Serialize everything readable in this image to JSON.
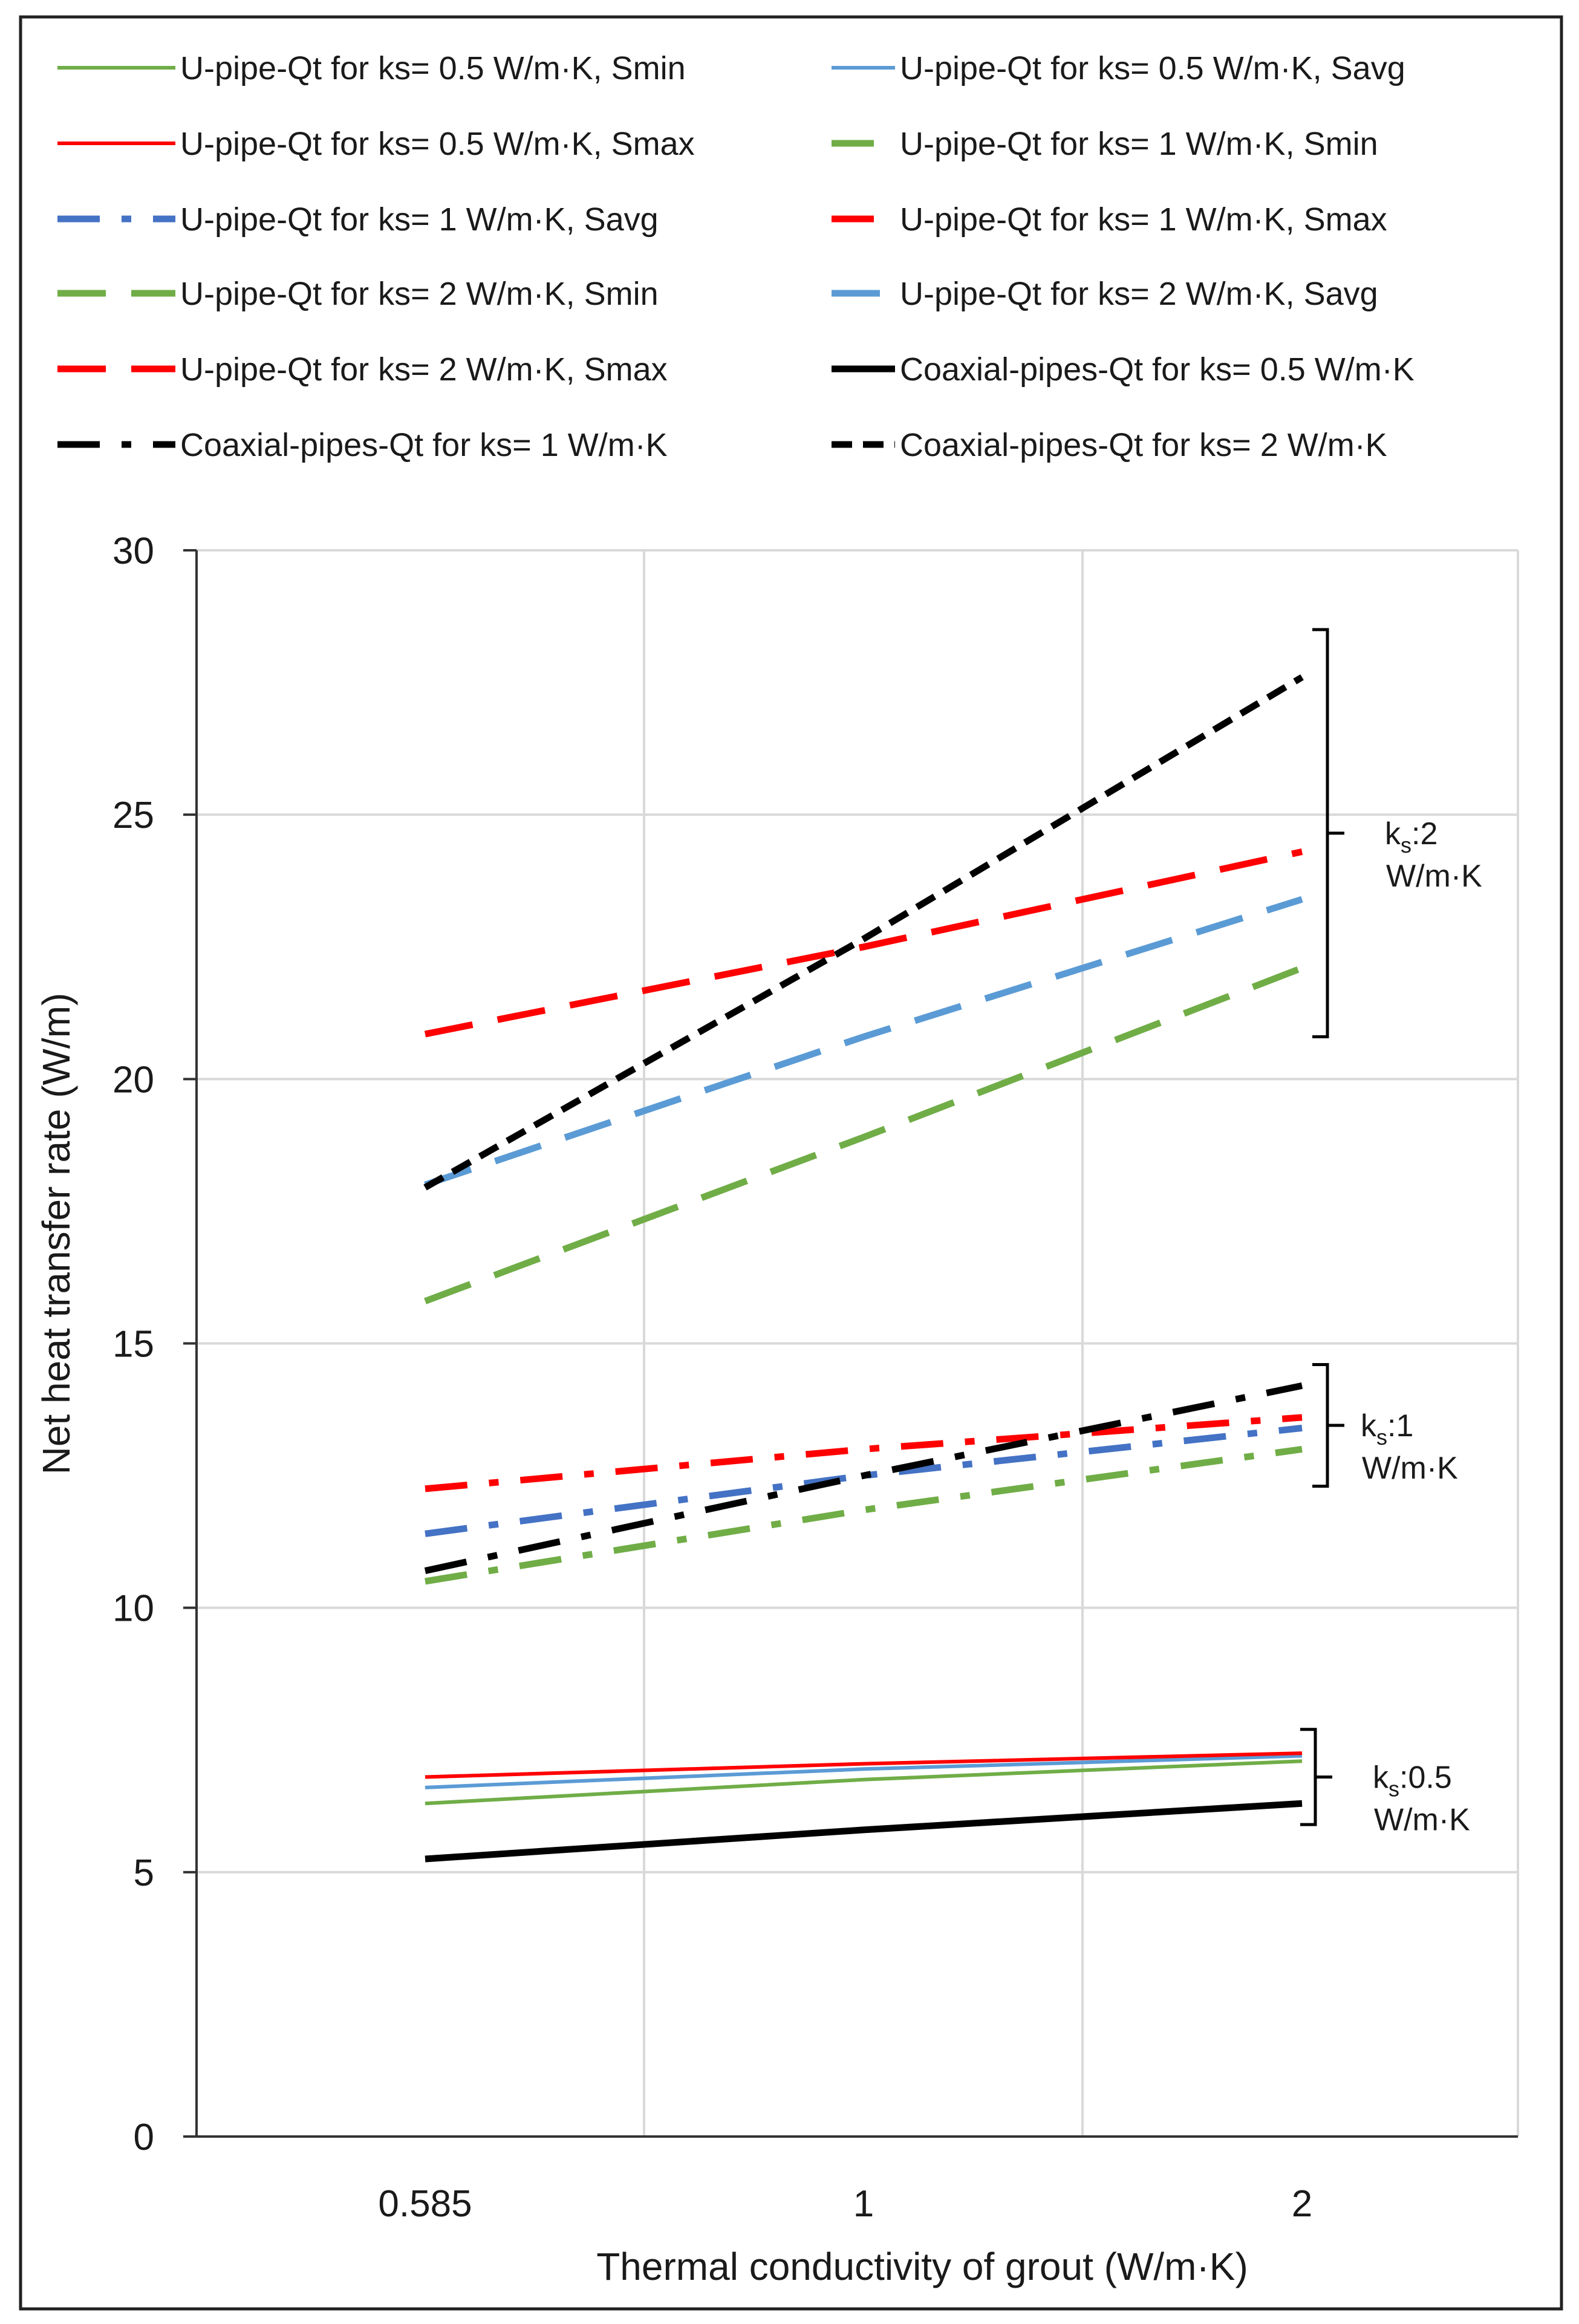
{
  "chart_data": {
    "type": "line",
    "categories": [
      "0.585",
      "1",
      "2"
    ],
    "xlabel": "Thermal conductivity of grout (W/m·K)",
    "ylabel": "Net heat transfer rate (W/m)",
    "ylim": [
      0,
      30
    ],
    "yticks": [
      "0",
      "5",
      "10",
      "15",
      "20",
      "25",
      "30"
    ],
    "grid": true,
    "legend_position": "top",
    "series": [
      {
        "name": "U-pipe-Qt  for ks= 0.5 W/m·K, Smin",
        "values": [
          6.3,
          6.75,
          7.1
        ],
        "color": "#70ad47",
        "dash": "solid",
        "width": "thin"
      },
      {
        "name": "U-pipe-Qt  for ks= 0.5 W/m·K, Savg",
        "values": [
          6.6,
          6.95,
          7.2
        ],
        "color": "#5b9bd5",
        "dash": "solid",
        "width": "thin"
      },
      {
        "name": "U-pipe-Qt  for ks= 0.5 W/m·K, Smax",
        "values": [
          6.8,
          7.05,
          7.25
        ],
        "color": "#ff0000",
        "dash": "solid",
        "width": "thin"
      },
      {
        "name": "U-pipe-Qt  for ks= 1 W/m·K, Smin",
        "values": [
          10.5,
          11.85,
          13.0
        ],
        "color": "#70ad47",
        "dash": "dashdot",
        "width": "thick"
      },
      {
        "name": "U-pipe-Qt  for ks= 1 W/m·K, Savg",
        "values": [
          11.4,
          12.5,
          13.4
        ],
        "color": "#4472c4",
        "dash": "dashdot",
        "width": "thick"
      },
      {
        "name": "U-pipe-Qt  for ks= 1 W/m·K, Smax",
        "values": [
          12.25,
          13.0,
          13.6
        ],
        "color": "#ff0000",
        "dash": "dashdot",
        "width": "thick"
      },
      {
        "name": "U-pipe-Qt  for ks= 2 W/m·K, Smin",
        "values": [
          15.8,
          18.9,
          22.1
        ],
        "color": "#70ad47",
        "dash": "dash",
        "width": "thick"
      },
      {
        "name": "U-pipe-Qt  for ks= 2 W/m·K, Savg",
        "values": [
          18.0,
          20.8,
          23.4
        ],
        "color": "#5b9bd5",
        "dash": "dash",
        "width": "thick"
      },
      {
        "name": "U-pipe-Qt  for ks= 2 W/m·K, Smax",
        "values": [
          20.85,
          22.5,
          24.3
        ],
        "color": "#ff0000",
        "dash": "dash",
        "width": "thick"
      },
      {
        "name": "Coaxial-pipes-Qt  for ks= 0.5 W/m·K",
        "values": [
          5.25,
          5.8,
          6.3
        ],
        "color": "#000000",
        "dash": "solid",
        "width": "thick"
      },
      {
        "name": "Coaxial-pipes-Qt  for ks= 1 W/m·K",
        "values": [
          10.7,
          12.5,
          14.2
        ],
        "color": "#000000",
        "dash": "dashdot",
        "width": "thick"
      },
      {
        "name": "Coaxial-pipes-Qt  for ks= 2 W/m·K",
        "values": [
          17.95,
          22.65,
          27.6
        ],
        "color": "#000000",
        "dash": "shortdash",
        "width": "thick"
      }
    ],
    "annotations": [
      {
        "id": "ks2",
        "sub_prefix": "k",
        "sub": "s",
        "value": ":2",
        "unit": "W/m·K",
        "range": [
          20.8,
          28.5
        ]
      },
      {
        "id": "ks1",
        "sub_prefix": "k",
        "sub": "s",
        "value": ":1",
        "unit": "W/m·K",
        "range": [
          12.3,
          14.6
        ]
      },
      {
        "id": "ks05",
        "sub_prefix": "k",
        "sub": "s",
        "value": ":0.5",
        "unit": "W/m·K",
        "range": [
          5.9,
          7.7
        ]
      }
    ]
  }
}
